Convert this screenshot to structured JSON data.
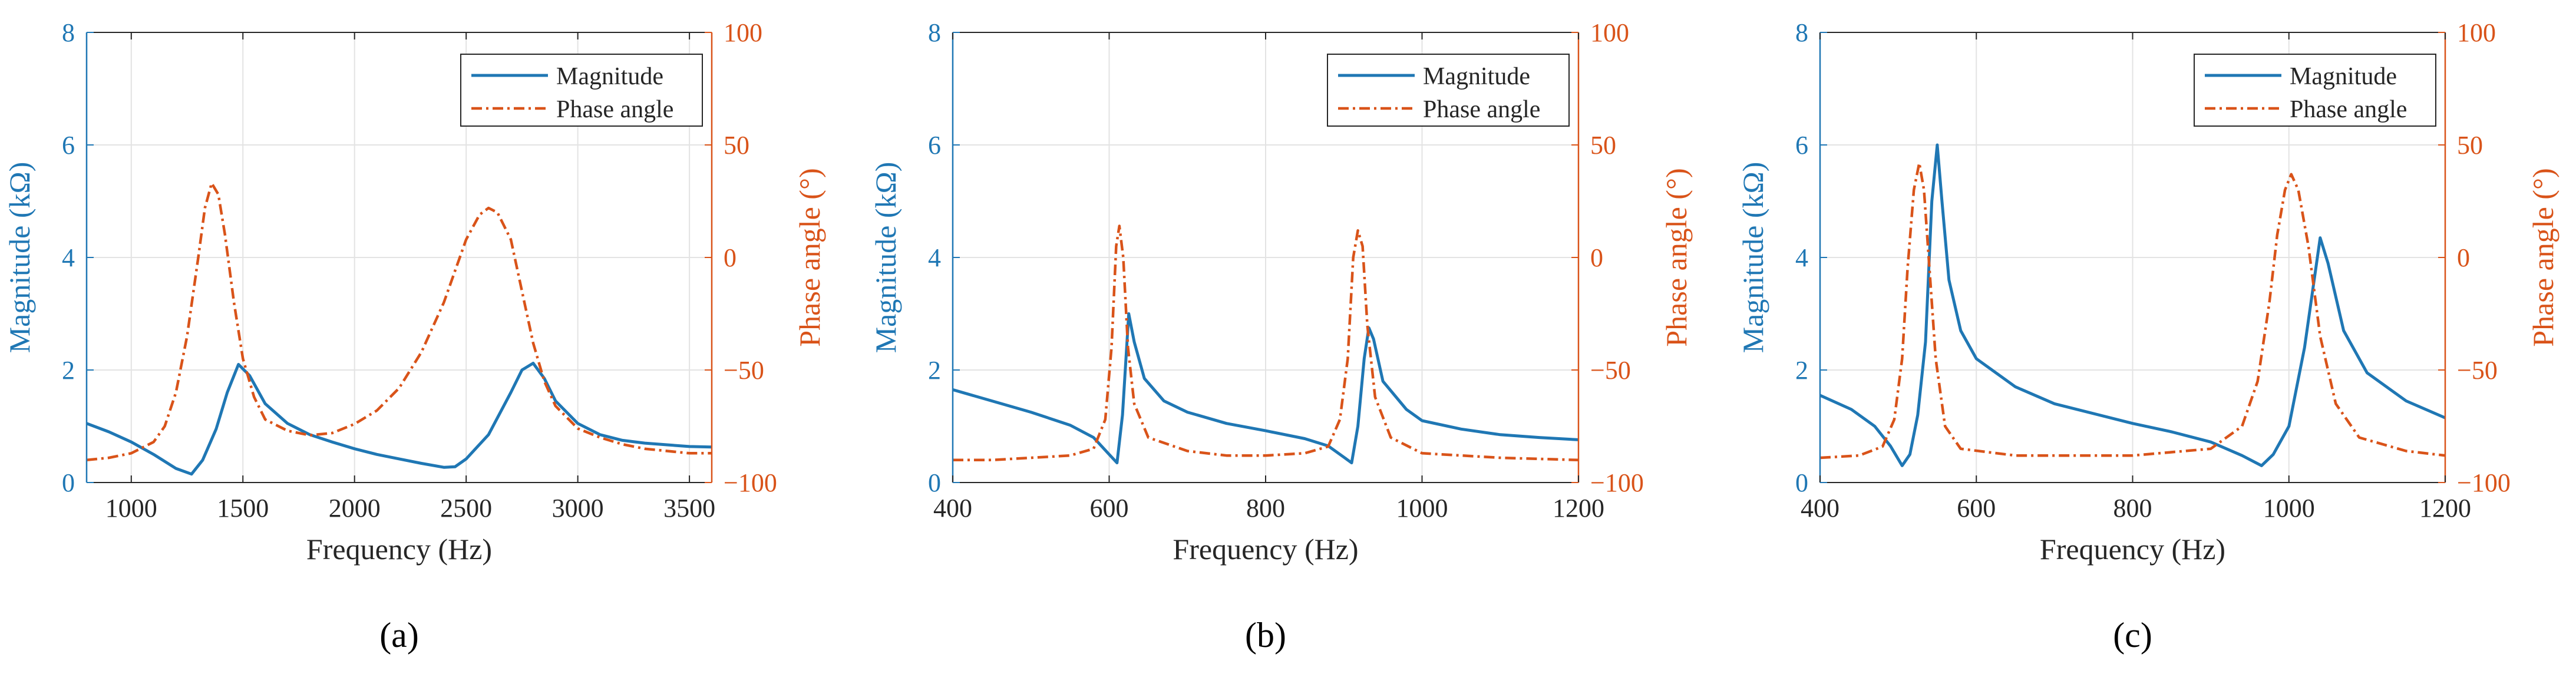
{
  "colors": {
    "magnitude": "#1f77b4",
    "phase": "#d95319",
    "axis": "#262626",
    "grid": "#e3e3e3"
  },
  "chart_data": [
    {
      "type": "line",
      "panel_label": "(a)",
      "xlabel": "Frequency (Hz)",
      "ylabel_left": "Magnitude (kΩ)",
      "ylabel_right": "Phase angle (°)",
      "xlim": [
        800,
        3600
      ],
      "ylim_left": [
        0,
        8
      ],
      "ylim_right": [
        -100,
        100
      ],
      "xticks": [
        1000,
        1500,
        2000,
        2500,
        3000,
        3500
      ],
      "yticks_left": [
        0,
        2,
        4,
        6,
        8
      ],
      "yticks_right": [
        -100,
        -50,
        0,
        50,
        100
      ],
      "grid": true,
      "legend_position": "top-right",
      "series": [
        {
          "name": "Magnitude",
          "axis": "left",
          "style": "solid",
          "points": [
            [
              800,
              1.05
            ],
            [
              900,
              0.9
            ],
            [
              1000,
              0.72
            ],
            [
              1100,
              0.5
            ],
            [
              1200,
              0.25
            ],
            [
              1270,
              0.15
            ],
            [
              1320,
              0.4
            ],
            [
              1380,
              0.95
            ],
            [
              1430,
              1.6
            ],
            [
              1480,
              2.1
            ],
            [
              1530,
              1.9
            ],
            [
              1600,
              1.4
            ],
            [
              1700,
              1.05
            ],
            [
              1800,
              0.85
            ],
            [
              1900,
              0.72
            ],
            [
              2000,
              0.6
            ],
            [
              2100,
              0.5
            ],
            [
              2200,
              0.42
            ],
            [
              2300,
              0.34
            ],
            [
              2400,
              0.27
            ],
            [
              2450,
              0.28
            ],
            [
              2500,
              0.42
            ],
            [
              2600,
              0.85
            ],
            [
              2700,
              1.6
            ],
            [
              2750,
              2.0
            ],
            [
              2800,
              2.12
            ],
            [
              2850,
              1.85
            ],
            [
              2900,
              1.45
            ],
            [
              3000,
              1.05
            ],
            [
              3100,
              0.85
            ],
            [
              3200,
              0.75
            ],
            [
              3300,
              0.7
            ],
            [
              3400,
              0.67
            ],
            [
              3500,
              0.64
            ],
            [
              3600,
              0.63
            ]
          ]
        },
        {
          "name": "Phase angle",
          "axis": "right",
          "style": "dashdot",
          "points": [
            [
              800,
              -90
            ],
            [
              900,
              -89
            ],
            [
              1000,
              -87
            ],
            [
              1100,
              -82
            ],
            [
              1150,
              -75
            ],
            [
              1200,
              -60
            ],
            [
              1250,
              -35
            ],
            [
              1300,
              0
            ],
            [
              1330,
              22
            ],
            [
              1360,
              33
            ],
            [
              1390,
              28
            ],
            [
              1420,
              10
            ],
            [
              1460,
              -20
            ],
            [
              1500,
              -45
            ],
            [
              1550,
              -62
            ],
            [
              1600,
              -72
            ],
            [
              1700,
              -77
            ],
            [
              1800,
              -79
            ],
            [
              1900,
              -78
            ],
            [
              2000,
              -74
            ],
            [
              2100,
              -68
            ],
            [
              2200,
              -58
            ],
            [
              2300,
              -42
            ],
            [
              2400,
              -20
            ],
            [
              2500,
              8
            ],
            [
              2560,
              19
            ],
            [
              2600,
              22
            ],
            [
              2640,
              20
            ],
            [
              2700,
              8
            ],
            [
              2750,
              -15
            ],
            [
              2800,
              -38
            ],
            [
              2850,
              -55
            ],
            [
              2900,
              -66
            ],
            [
              3000,
              -76
            ],
            [
              3100,
              -80
            ],
            [
              3200,
              -83
            ],
            [
              3300,
              -85
            ],
            [
              3400,
              -86
            ],
            [
              3500,
              -87
            ],
            [
              3600,
              -87
            ]
          ]
        }
      ]
    },
    {
      "type": "line",
      "panel_label": "(b)",
      "xlabel": "Frequency (Hz)",
      "ylabel_left": "Magnitude (kΩ)",
      "ylabel_right": "Phase angle (°)",
      "xlim": [
        400,
        1200
      ],
      "ylim_left": [
        0,
        8
      ],
      "ylim_right": [
        -100,
        100
      ],
      "xticks": [
        400,
        600,
        800,
        1000,
        1200
      ],
      "yticks_left": [
        0,
        2,
        4,
        6,
        8
      ],
      "yticks_right": [
        -100,
        -50,
        0,
        50,
        100
      ],
      "grid": true,
      "legend_position": "top-right",
      "series": [
        {
          "name": "Magnitude",
          "axis": "left",
          "style": "solid",
          "points": [
            [
              400,
              1.65
            ],
            [
              450,
              1.45
            ],
            [
              500,
              1.25
            ],
            [
              550,
              1.02
            ],
            [
              580,
              0.8
            ],
            [
              600,
              0.5
            ],
            [
              610,
              0.35
            ],
            [
              617,
              1.2
            ],
            [
              625,
              3.0
            ],
            [
              632,
              2.5
            ],
            [
              645,
              1.85
            ],
            [
              670,
              1.45
            ],
            [
              700,
              1.25
            ],
            [
              750,
              1.05
            ],
            [
              800,
              0.92
            ],
            [
              850,
              0.78
            ],
            [
              880,
              0.65
            ],
            [
              900,
              0.45
            ],
            [
              910,
              0.35
            ],
            [
              918,
              1.0
            ],
            [
              926,
              2.2
            ],
            [
              932,
              2.75
            ],
            [
              938,
              2.55
            ],
            [
              950,
              1.8
            ],
            [
              980,
              1.3
            ],
            [
              1000,
              1.1
            ],
            [
              1050,
              0.95
            ],
            [
              1100,
              0.85
            ],
            [
              1150,
              0.8
            ],
            [
              1200,
              0.76
            ]
          ]
        },
        {
          "name": "Phase angle",
          "axis": "right",
          "style": "dashdot",
          "points": [
            [
              400,
              -90
            ],
            [
              450,
              -90
            ],
            [
              500,
              -89
            ],
            [
              550,
              -88
            ],
            [
              580,
              -85
            ],
            [
              595,
              -72
            ],
            [
              603,
              -40
            ],
            [
              609,
              5
            ],
            [
              613,
              14
            ],
            [
              618,
              0
            ],
            [
              624,
              -40
            ],
            [
              632,
              -65
            ],
            [
              650,
              -80
            ],
            [
              700,
              -86
            ],
            [
              750,
              -88
            ],
            [
              800,
              -88
            ],
            [
              850,
              -87
            ],
            [
              880,
              -84
            ],
            [
              895,
              -72
            ],
            [
              905,
              -45
            ],
            [
              912,
              0
            ],
            [
              918,
              12
            ],
            [
              924,
              5
            ],
            [
              930,
              -30
            ],
            [
              940,
              -62
            ],
            [
              960,
              -80
            ],
            [
              1000,
              -87
            ],
            [
              1100,
              -89
            ],
            [
              1200,
              -90
            ]
          ]
        }
      ]
    },
    {
      "type": "line",
      "panel_label": "(c)",
      "xlabel": "Frequency (Hz)",
      "ylabel_left": "Magnitude (kΩ)",
      "ylabel_right": "Phase angle (°)",
      "xlim": [
        400,
        1200
      ],
      "ylim_left": [
        0,
        8
      ],
      "ylim_right": [
        -100,
        100
      ],
      "xticks": [
        400,
        600,
        800,
        1000,
        1200
      ],
      "yticks_left": [
        0,
        2,
        4,
        6,
        8
      ],
      "yticks_right": [
        -100,
        -50,
        0,
        50,
        100
      ],
      "grid": true,
      "legend_position": "top-right",
      "series": [
        {
          "name": "Magnitude",
          "axis": "left",
          "style": "solid",
          "points": [
            [
              400,
              1.55
            ],
            [
              440,
              1.3
            ],
            [
              470,
              1.0
            ],
            [
              490,
              0.65
            ],
            [
              505,
              0.3
            ],
            [
              515,
              0.5
            ],
            [
              525,
              1.2
            ],
            [
              535,
              2.5
            ],
            [
              543,
              5.0
            ],
            [
              550,
              6.0
            ],
            [
              556,
              5.0
            ],
            [
              565,
              3.6
            ],
            [
              580,
              2.7
            ],
            [
              600,
              2.2
            ],
            [
              650,
              1.7
            ],
            [
              700,
              1.4
            ],
            [
              800,
              1.05
            ],
            [
              850,
              0.9
            ],
            [
              900,
              0.72
            ],
            [
              940,
              0.48
            ],
            [
              965,
              0.3
            ],
            [
              980,
              0.5
            ],
            [
              1000,
              1.0
            ],
            [
              1020,
              2.4
            ],
            [
              1040,
              4.35
            ],
            [
              1050,
              3.9
            ],
            [
              1070,
              2.7
            ],
            [
              1100,
              1.95
            ],
            [
              1150,
              1.45
            ],
            [
              1200,
              1.15
            ]
          ]
        },
        {
          "name": "Phase angle",
          "axis": "right",
          "style": "dashdot",
          "points": [
            [
              400,
              -89
            ],
            [
              450,
              -88
            ],
            [
              480,
              -84
            ],
            [
              495,
              -72
            ],
            [
              505,
              -45
            ],
            [
              512,
              -5
            ],
            [
              520,
              30
            ],
            [
              527,
              42
            ],
            [
              533,
              30
            ],
            [
              540,
              -5
            ],
            [
              548,
              -45
            ],
            [
              560,
              -75
            ],
            [
              580,
              -85
            ],
            [
              650,
              -88
            ],
            [
              800,
              -88
            ],
            [
              900,
              -85
            ],
            [
              940,
              -75
            ],
            [
              960,
              -55
            ],
            [
              975,
              -20
            ],
            [
              985,
              10
            ],
            [
              995,
              30
            ],
            [
              1003,
              37
            ],
            [
              1012,
              30
            ],
            [
              1025,
              5
            ],
            [
              1040,
              -35
            ],
            [
              1060,
              -65
            ],
            [
              1090,
              -80
            ],
            [
              1150,
              -86
            ],
            [
              1200,
              -88
            ]
          ]
        }
      ]
    }
  ]
}
